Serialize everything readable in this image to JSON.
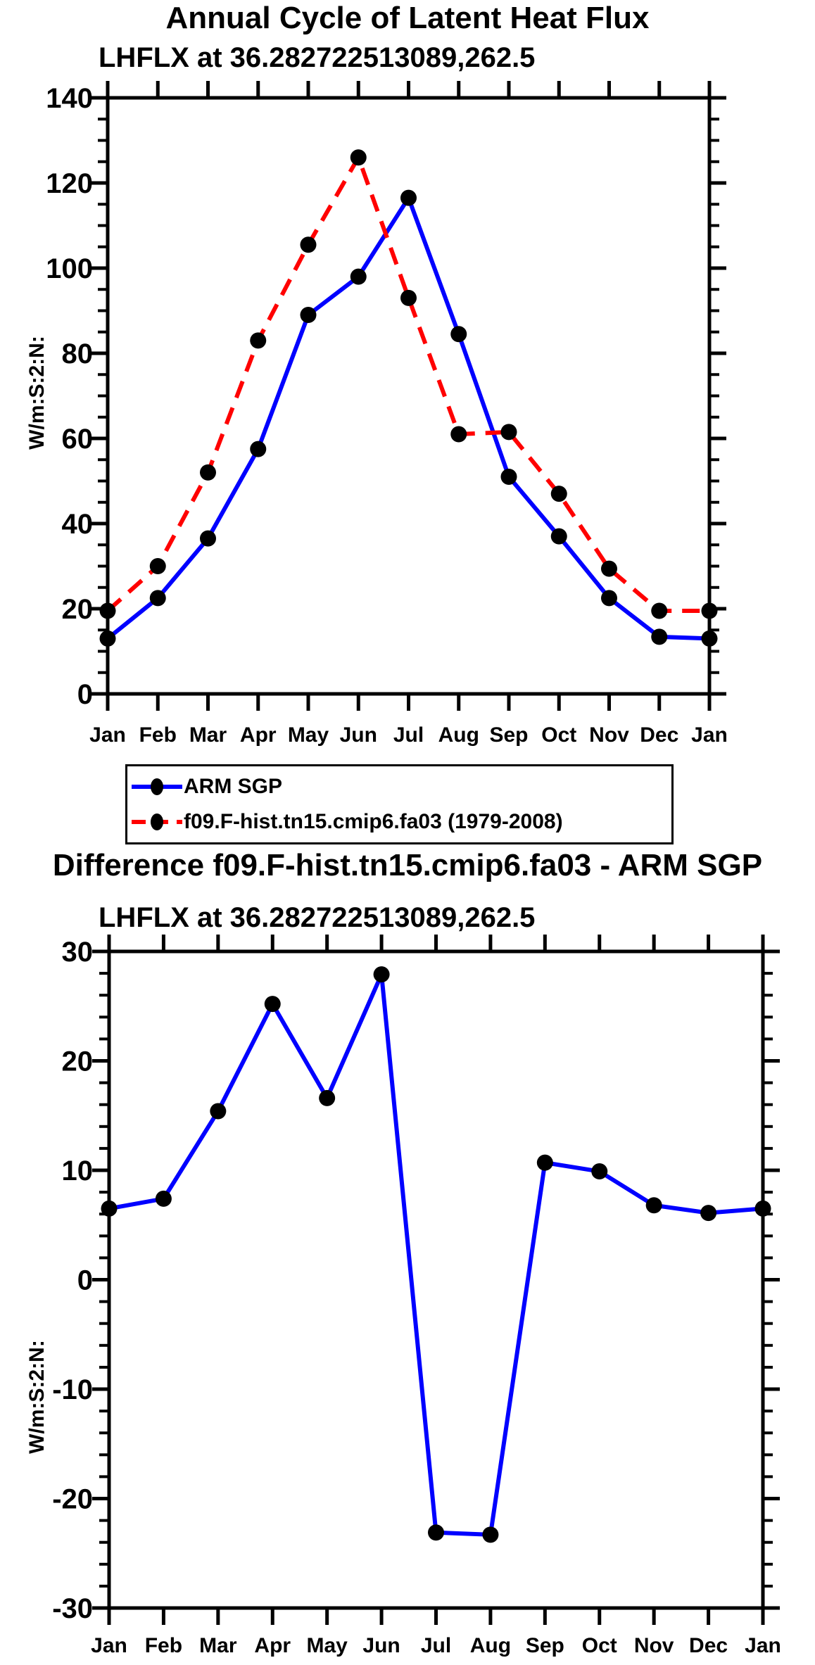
{
  "page": {
    "background_color": "#ffffff",
    "text_color": "#000000",
    "axis_color": "#000000"
  },
  "chart_data": [
    {
      "type": "line",
      "title": "Annual Cycle of Latent Heat Flux",
      "subtitle": "LHFLX at 36.282722513089,262.5",
      "ylabel": "W/m:S:2:N:",
      "xlabel": "",
      "categories": [
        "Jan",
        "Feb",
        "Mar",
        "Apr",
        "May",
        "Jun",
        "Jul",
        "Aug",
        "Sep",
        "Oct",
        "Nov",
        "Dec",
        "Jan"
      ],
      "ylim": [
        0,
        140
      ],
      "ytick_major": 20,
      "ytick_minor": 5,
      "grid": false,
      "legend_position": "below-plot",
      "series": [
        {
          "name": "ARM SGP",
          "color": "#0000ff",
          "line_style": "solid",
          "marker": "filled-circle",
          "marker_color": "#000000",
          "values": [
            13,
            22.5,
            36.5,
            57.5,
            89,
            98,
            116.5,
            84.5,
            51,
            37,
            22.5,
            13.4,
            13
          ]
        },
        {
          "name": "f09.F-hist.tn15.cmip6.fa03 (1979-2008)",
          "color": "#ff0000",
          "line_style": "dashed",
          "marker": "filled-circle",
          "marker_color": "#000000",
          "values": [
            19.5,
            30,
            52,
            83,
            105.5,
            126,
            93,
            61,
            61.5,
            47,
            29.4,
            19.5,
            19.5
          ]
        }
      ]
    },
    {
      "type": "line",
      "title": "Difference f09.F-hist.tn15.cmip6.fa03 - ARM SGP",
      "subtitle": "LHFLX at 36.282722513089,262.5",
      "ylabel": "W/m:S:2:N:",
      "xlabel": "",
      "categories": [
        "Jan",
        "Feb",
        "Mar",
        "Apr",
        "May",
        "Jun",
        "Jul",
        "Aug",
        "Sep",
        "Oct",
        "Nov",
        "Dec",
        "Jan"
      ],
      "ylim": [
        -30,
        30
      ],
      "ytick_major": 10,
      "ytick_minor": 2,
      "grid": false,
      "legend_position": "none",
      "series": [
        {
          "color": "#0000ff",
          "line_style": "solid",
          "marker": "filled-circle",
          "marker_color": "#000000",
          "values": [
            6.5,
            7.4,
            15.4,
            25.2,
            16.6,
            27.9,
            -23.1,
            -23.3,
            10.7,
            9.9,
            6.8,
            6.1,
            6.5
          ]
        }
      ]
    }
  ]
}
